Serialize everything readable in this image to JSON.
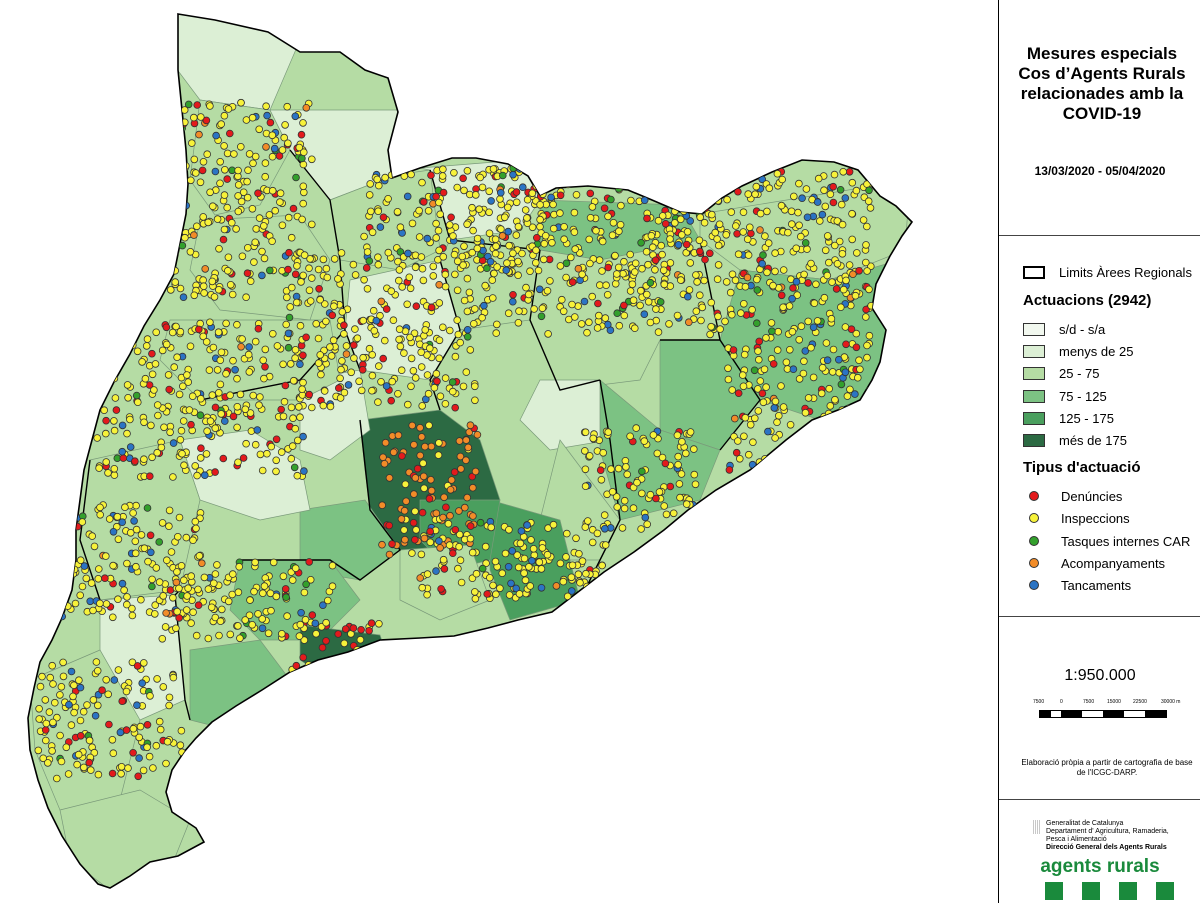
{
  "title": "Mesures especials Cos d’Agents Rurals relacionades amb la COVID-19",
  "date_range": "13/03/2020 - 05/04/2020",
  "legend": {
    "boundary_label": "Limits Àrees Regionals",
    "actuacions_title": "Actuacions (2942)",
    "classes": [
      {
        "label": "s/d - s/a",
        "color": "#f2f8ef"
      },
      {
        "label": "menys de 25",
        "color": "#dcefd5"
      },
      {
        "label": "25 - 75",
        "color": "#b5dca4"
      },
      {
        "label": "75 - 125",
        "color": "#7cc283"
      },
      {
        "label": "125 - 175",
        "color": "#4a9f5e"
      },
      {
        "label": "més de 175",
        "color": "#2c6a43"
      }
    ],
    "tipus_title": "Tipus d'actuació",
    "types": [
      {
        "label": "Denúncies",
        "color": "#e31a1c"
      },
      {
        "label": "Inspeccions",
        "color": "#f7f23a"
      },
      {
        "label": "Tasques internes CAR",
        "color": "#33a02c"
      },
      {
        "label": "Acompanyaments",
        "color": "#f28c28"
      },
      {
        "label": "Tancaments",
        "color": "#2b74c4"
      }
    ]
  },
  "scale": {
    "ratio": "1:950.000",
    "labels": [
      "7500",
      "0",
      "7500",
      "15000",
      "22500",
      "30000 m"
    ]
  },
  "credit": "Elaboració pròpia a partir de cartografia de base de l'ICGC-DARP.",
  "organization": {
    "lines": [
      "Generalitat de Catalunya",
      "Departament d' Agricultura, Ramaderia,",
      "Pesca i Alimentació"
    ],
    "unit": "Direcció General dels Agents Rurals",
    "brand": "agents rurals"
  }
}
